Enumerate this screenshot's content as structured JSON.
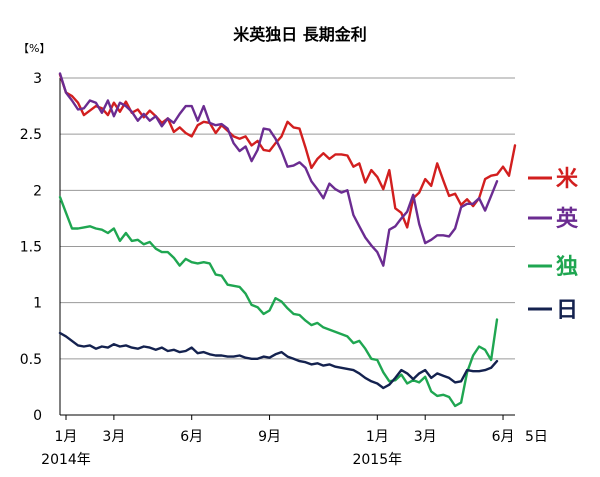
{
  "chart_data": {
    "type": "line",
    "title": "米英独日 長期金利",
    "ylabel": "【%】",
    "ylim": [
      0,
      3
    ],
    "y_ticks": [
      "0",
      "0.5",
      "1",
      "1.5",
      "2",
      "2.5",
      "3"
    ],
    "grid": true,
    "legend_position": "right",
    "x_month_labels": [
      {
        "label": "1月",
        "week": 1
      },
      {
        "label": "3月",
        "week": 9
      },
      {
        "label": "6月",
        "week": 22
      },
      {
        "label": "9月",
        "week": 35
      },
      {
        "label": "1月",
        "week": 53
      },
      {
        "label": "3月",
        "week": 61
      },
      {
        "label": "6月",
        "week": 74
      }
    ],
    "x_end_label": {
      "label": "5日",
      "week": 76
    },
    "x_year_labels": [
      {
        "label": "2014年",
        "week": 1
      },
      {
        "label": "2015年",
        "week": 53
      }
    ],
    "series": [
      {
        "name": "米",
        "color": "#d21f1f",
        "values": [
          [
            0,
            3.03
          ],
          [
            1,
            2.87
          ],
          [
            2,
            2.84
          ],
          [
            3,
            2.78
          ],
          [
            4,
            2.67
          ],
          [
            5,
            2.71
          ],
          [
            6,
            2.75
          ],
          [
            7,
            2.73
          ],
          [
            8,
            2.67
          ],
          [
            9,
            2.78
          ],
          [
            10,
            2.7
          ],
          [
            11,
            2.79
          ],
          [
            12,
            2.69
          ],
          [
            13,
            2.72
          ],
          [
            14,
            2.65
          ],
          [
            15,
            2.71
          ],
          [
            16,
            2.66
          ],
          [
            17,
            2.6
          ],
          [
            18,
            2.64
          ],
          [
            19,
            2.52
          ],
          [
            20,
            2.56
          ],
          [
            21,
            2.51
          ],
          [
            22,
            2.48
          ],
          [
            23,
            2.58
          ],
          [
            24,
            2.61
          ],
          [
            25,
            2.6
          ],
          [
            26,
            2.51
          ],
          [
            27,
            2.58
          ],
          [
            28,
            2.53
          ],
          [
            29,
            2.48
          ],
          [
            30,
            2.46
          ],
          [
            31,
            2.48
          ],
          [
            32,
            2.4
          ],
          [
            33,
            2.44
          ],
          [
            34,
            2.36
          ],
          [
            35,
            2.35
          ],
          [
            36,
            2.42
          ],
          [
            37,
            2.48
          ],
          [
            38,
            2.61
          ],
          [
            39,
            2.56
          ],
          [
            40,
            2.55
          ],
          [
            41,
            2.38
          ],
          [
            42,
            2.2
          ],
          [
            43,
            2.28
          ],
          [
            44,
            2.33
          ],
          [
            45,
            2.28
          ],
          [
            46,
            2.32
          ],
          [
            47,
            2.32
          ],
          [
            48,
            2.31
          ],
          [
            49,
            2.21
          ],
          [
            50,
            2.24
          ],
          [
            51,
            2.07
          ],
          [
            52,
            2.18
          ],
          [
            53,
            2.12
          ],
          [
            54,
            2.01
          ],
          [
            55,
            2.18
          ],
          [
            56,
            1.84
          ],
          [
            57,
            1.8
          ],
          [
            58,
            1.67
          ],
          [
            59,
            1.93
          ],
          [
            60,
            1.98
          ],
          [
            61,
            2.1
          ],
          [
            62,
            2.04
          ],
          [
            63,
            2.24
          ],
          [
            64,
            2.09
          ],
          [
            65,
            1.95
          ],
          [
            66,
            1.97
          ],
          [
            67,
            1.87
          ],
          [
            68,
            1.92
          ],
          [
            69,
            1.86
          ],
          [
            70,
            1.93
          ],
          [
            71,
            2.1
          ],
          [
            72,
            2.13
          ],
          [
            73,
            2.14
          ],
          [
            74,
            2.21
          ],
          [
            75,
            2.13
          ],
          [
            76,
            2.4
          ]
        ]
      },
      {
        "name": "英",
        "color": "#6b2c91",
        "values": [
          [
            0,
            3.04
          ],
          [
            1,
            2.87
          ],
          [
            2,
            2.8
          ],
          [
            3,
            2.72
          ],
          [
            4,
            2.73
          ],
          [
            5,
            2.8
          ],
          [
            6,
            2.78
          ],
          [
            7,
            2.69
          ],
          [
            8,
            2.8
          ],
          [
            9,
            2.66
          ],
          [
            10,
            2.78
          ],
          [
            11,
            2.75
          ],
          [
            12,
            2.7
          ],
          [
            13,
            2.62
          ],
          [
            14,
            2.68
          ],
          [
            15,
            2.62
          ],
          [
            16,
            2.66
          ],
          [
            17,
            2.57
          ],
          [
            18,
            2.64
          ],
          [
            19,
            2.6
          ],
          [
            20,
            2.68
          ],
          [
            21,
            2.75
          ],
          [
            22,
            2.75
          ],
          [
            23,
            2.62
          ],
          [
            24,
            2.75
          ],
          [
            25,
            2.6
          ],
          [
            26,
            2.58
          ],
          [
            27,
            2.59
          ],
          [
            28,
            2.55
          ],
          [
            29,
            2.42
          ],
          [
            30,
            2.35
          ],
          [
            31,
            2.39
          ],
          [
            32,
            2.26
          ],
          [
            33,
            2.36
          ],
          [
            34,
            2.55
          ],
          [
            35,
            2.54
          ],
          [
            36,
            2.46
          ],
          [
            37,
            2.35
          ],
          [
            38,
            2.21
          ],
          [
            39,
            2.22
          ],
          [
            40,
            2.25
          ],
          [
            41,
            2.2
          ],
          [
            42,
            2.08
          ],
          [
            43,
            2.01
          ],
          [
            44,
            1.93
          ],
          [
            45,
            2.06
          ],
          [
            46,
            2.01
          ],
          [
            47,
            1.98
          ],
          [
            48,
            2.0
          ],
          [
            49,
            1.78
          ],
          [
            50,
            1.68
          ],
          [
            51,
            1.58
          ],
          [
            52,
            1.51
          ],
          [
            53,
            1.45
          ],
          [
            54,
            1.33
          ],
          [
            55,
            1.65
          ],
          [
            56,
            1.68
          ],
          [
            57,
            1.75
          ],
          [
            58,
            1.81
          ],
          [
            59,
            1.96
          ],
          [
            60,
            1.7
          ],
          [
            61,
            1.53
          ],
          [
            62,
            1.56
          ],
          [
            63,
            1.6
          ],
          [
            64,
            1.6
          ],
          [
            65,
            1.59
          ],
          [
            66,
            1.66
          ],
          [
            67,
            1.85
          ],
          [
            68,
            1.88
          ],
          [
            69,
            1.88
          ],
          [
            70,
            1.93
          ],
          [
            71,
            1.82
          ],
          [
            72,
            1.95
          ],
          [
            73,
            2.08
          ]
        ]
      },
      {
        "name": "独",
        "color": "#1fa651",
        "values": [
          [
            0,
            1.94
          ],
          [
            1,
            1.8
          ],
          [
            2,
            1.66
          ],
          [
            3,
            1.66
          ],
          [
            4,
            1.67
          ],
          [
            5,
            1.68
          ],
          [
            6,
            1.66
          ],
          [
            7,
            1.65
          ],
          [
            8,
            1.62
          ],
          [
            9,
            1.66
          ],
          [
            10,
            1.55
          ],
          [
            11,
            1.62
          ],
          [
            12,
            1.55
          ],
          [
            13,
            1.56
          ],
          [
            14,
            1.52
          ],
          [
            15,
            1.54
          ],
          [
            16,
            1.48
          ],
          [
            17,
            1.45
          ],
          [
            18,
            1.45
          ],
          [
            19,
            1.4
          ],
          [
            20,
            1.33
          ],
          [
            21,
            1.39
          ],
          [
            22,
            1.36
          ],
          [
            23,
            1.35
          ],
          [
            24,
            1.36
          ],
          [
            25,
            1.35
          ],
          [
            26,
            1.25
          ],
          [
            27,
            1.24
          ],
          [
            28,
            1.16
          ],
          [
            29,
            1.15
          ],
          [
            30,
            1.14
          ],
          [
            31,
            1.08
          ],
          [
            32,
            0.98
          ],
          [
            33,
            0.96
          ],
          [
            34,
            0.9
          ],
          [
            35,
            0.93
          ],
          [
            36,
            1.04
          ],
          [
            37,
            1.01
          ],
          [
            38,
            0.95
          ],
          [
            39,
            0.9
          ],
          [
            40,
            0.89
          ],
          [
            41,
            0.84
          ],
          [
            42,
            0.8
          ],
          [
            43,
            0.82
          ],
          [
            44,
            0.78
          ],
          [
            45,
            0.76
          ],
          [
            46,
            0.74
          ],
          [
            47,
            0.72
          ],
          [
            48,
            0.7
          ],
          [
            49,
            0.64
          ],
          [
            50,
            0.66
          ],
          [
            51,
            0.59
          ],
          [
            52,
            0.5
          ],
          [
            53,
            0.49
          ],
          [
            54,
            0.38
          ],
          [
            55,
            0.3
          ],
          [
            56,
            0.31
          ],
          [
            57,
            0.36
          ],
          [
            58,
            0.28
          ],
          [
            59,
            0.31
          ],
          [
            60,
            0.29
          ],
          [
            61,
            0.34
          ],
          [
            62,
            0.21
          ],
          [
            63,
            0.17
          ],
          [
            64,
            0.18
          ],
          [
            65,
            0.16
          ],
          [
            66,
            0.08
          ],
          [
            67,
            0.11
          ],
          [
            68,
            0.38
          ],
          [
            69,
            0.53
          ],
          [
            70,
            0.61
          ],
          [
            71,
            0.58
          ],
          [
            72,
            0.49
          ],
          [
            73,
            0.85
          ]
        ]
      },
      {
        "name": "日",
        "color": "#14224f",
        "values": [
          [
            0,
            0.73
          ],
          [
            1,
            0.7
          ],
          [
            2,
            0.66
          ],
          [
            3,
            0.62
          ],
          [
            4,
            0.61
          ],
          [
            5,
            0.62
          ],
          [
            6,
            0.59
          ],
          [
            7,
            0.61
          ],
          [
            8,
            0.6
          ],
          [
            9,
            0.63
          ],
          [
            10,
            0.61
          ],
          [
            11,
            0.62
          ],
          [
            12,
            0.6
          ],
          [
            13,
            0.59
          ],
          [
            14,
            0.61
          ],
          [
            15,
            0.6
          ],
          [
            16,
            0.58
          ],
          [
            17,
            0.6
          ],
          [
            18,
            0.57
          ],
          [
            19,
            0.58
          ],
          [
            20,
            0.56
          ],
          [
            21,
            0.57
          ],
          [
            22,
            0.6
          ],
          [
            23,
            0.55
          ],
          [
            24,
            0.56
          ],
          [
            25,
            0.54
          ],
          [
            26,
            0.53
          ],
          [
            27,
            0.53
          ],
          [
            28,
            0.52
          ],
          [
            29,
            0.52
          ],
          [
            30,
            0.53
          ],
          [
            31,
            0.51
          ],
          [
            32,
            0.5
          ],
          [
            33,
            0.5
          ],
          [
            34,
            0.52
          ],
          [
            35,
            0.51
          ],
          [
            36,
            0.54
          ],
          [
            37,
            0.56
          ],
          [
            38,
            0.52
          ],
          [
            39,
            0.5
          ],
          [
            40,
            0.48
          ],
          [
            41,
            0.47
          ],
          [
            42,
            0.45
          ],
          [
            43,
            0.46
          ],
          [
            44,
            0.44
          ],
          [
            45,
            0.45
          ],
          [
            46,
            0.43
          ],
          [
            47,
            0.42
          ],
          [
            48,
            0.41
          ],
          [
            49,
            0.4
          ],
          [
            50,
            0.37
          ],
          [
            51,
            0.33
          ],
          [
            52,
            0.3
          ],
          [
            53,
            0.28
          ],
          [
            54,
            0.24
          ],
          [
            55,
            0.27
          ],
          [
            56,
            0.33
          ],
          [
            57,
            0.4
          ],
          [
            58,
            0.37
          ],
          [
            59,
            0.32
          ],
          [
            60,
            0.37
          ],
          [
            61,
            0.4
          ],
          [
            62,
            0.33
          ],
          [
            63,
            0.37
          ],
          [
            64,
            0.35
          ],
          [
            65,
            0.33
          ],
          [
            66,
            0.29
          ],
          [
            67,
            0.3
          ],
          [
            68,
            0.4
          ],
          [
            69,
            0.39
          ],
          [
            70,
            0.39
          ],
          [
            71,
            0.4
          ],
          [
            72,
            0.42
          ],
          [
            73,
            0.48
          ]
        ]
      }
    ]
  }
}
